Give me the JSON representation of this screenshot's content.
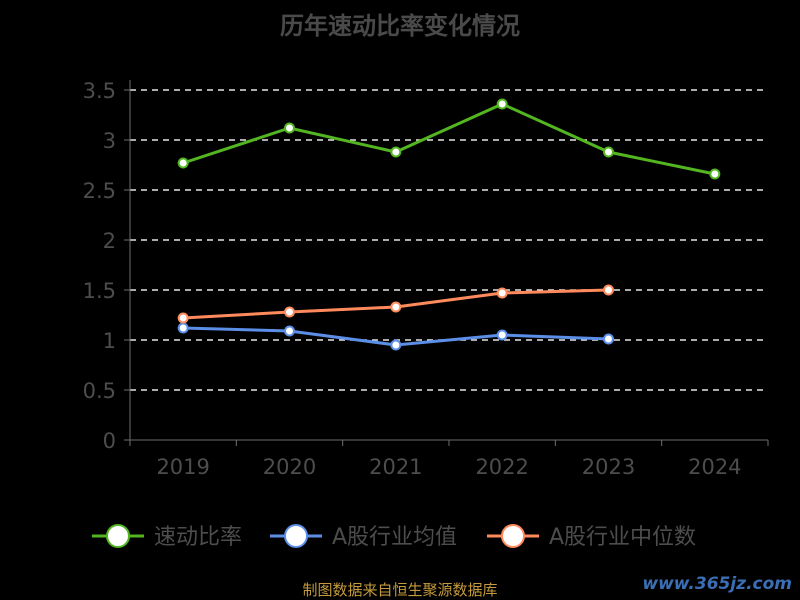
{
  "title": "历年速动比率变化情况",
  "source": "制图数据来自恒生聚源数据库",
  "watermark": "www.365jz.com",
  "chart_data": {
    "type": "line",
    "title": "历年速动比率变化情况",
    "categories": [
      "2019",
      "2020",
      "2021",
      "2022",
      "2023",
      "2024"
    ],
    "ylim": [
      0,
      3.5
    ],
    "yticks": [
      "0",
      "0.5",
      "1",
      "1.5",
      "2",
      "2.5",
      "3",
      "3.5"
    ],
    "grid": "horizontal dashed",
    "legend_position": "bottom",
    "series": [
      {
        "name": "速动比率",
        "color": "#52b521",
        "values": [
          2.77,
          3.12,
          2.88,
          3.36,
          2.88,
          2.66
        ]
      },
      {
        "name": "A股行业均值",
        "color": "#5b8ee6",
        "values": [
          1.12,
          1.09,
          0.95,
          1.05,
          1.01,
          null
        ]
      },
      {
        "name": "A股行业中位数",
        "color": "#ff8a5c",
        "values": [
          1.22,
          1.28,
          1.33,
          1.47,
          1.5,
          null
        ]
      }
    ]
  }
}
